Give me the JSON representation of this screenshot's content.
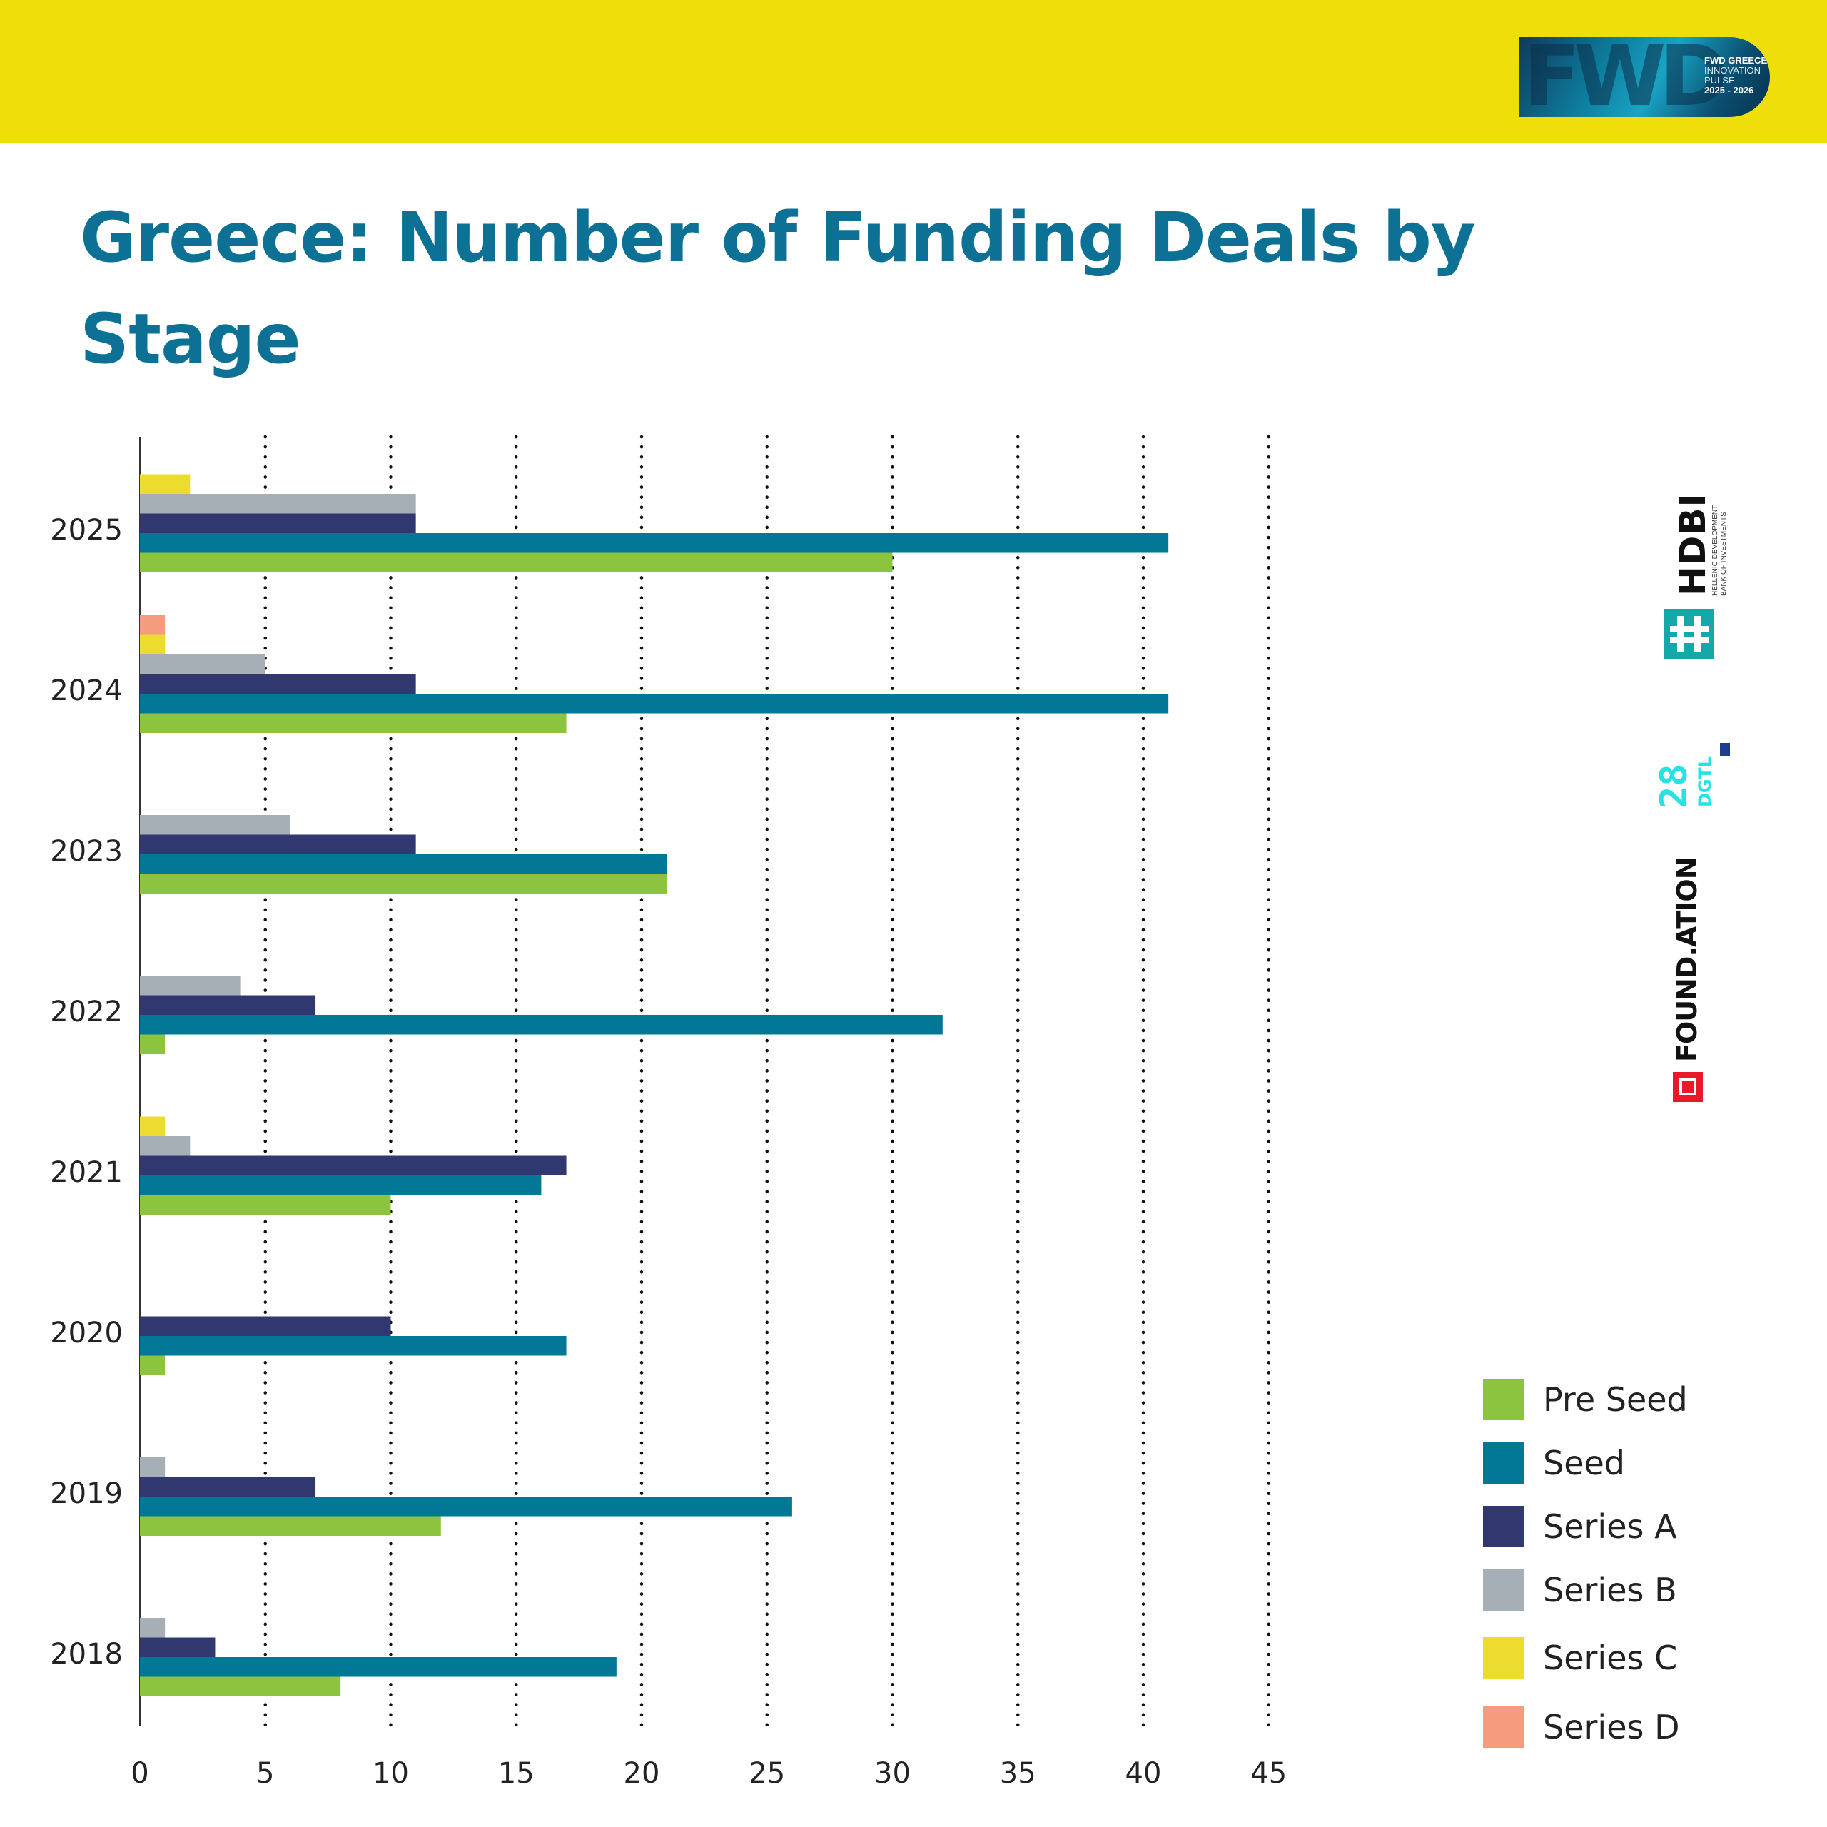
{
  "header": {
    "logo_text": "FWD",
    "logo_lines": [
      "FWD GREECE",
      "INNOVATION",
      "PULSE",
      "2025 - 2026"
    ]
  },
  "title": "Greece: Number of Funding Deals by Stage",
  "sponsors": {
    "hdbi": {
      "name": "HDBI",
      "line1": "HELLENIC DEVELOPMENT",
      "line2": "BANK OF INVESTMENTS",
      "color": "#14a8a8"
    },
    "dgtl": {
      "name": "28",
      "sub": "DGTL",
      "color": "#26e3e3"
    },
    "foundation": {
      "name": "FOUND.ATION",
      "color": "#e51b2a"
    }
  },
  "chart_data": {
    "type": "bar",
    "orientation": "horizontal",
    "title": "Greece: Number of Funding Deals by Stage",
    "xlabel": "",
    "ylabel": "",
    "xlim": [
      0,
      45
    ],
    "xticks": [
      0,
      5,
      10,
      15,
      20,
      25,
      30,
      35,
      40,
      45
    ],
    "grid": "vertical dotted",
    "categories": [
      "2025",
      "2024",
      "2023",
      "2022",
      "2021",
      "2020",
      "2019",
      "2018"
    ],
    "series": [
      {
        "name": "Pre Seed",
        "color": "#8cc43f",
        "values": [
          30,
          17,
          21,
          1,
          10,
          1,
          12,
          8
        ]
      },
      {
        "name": "Seed",
        "color": "#027796",
        "values": [
          41,
          41,
          21,
          32,
          16,
          17,
          26,
          19
        ]
      },
      {
        "name": "Series A",
        "color": "#31386f",
        "values": [
          11,
          11,
          11,
          7,
          17,
          10,
          7,
          3
        ]
      },
      {
        "name": "Series B",
        "color": "#a6aeb6",
        "values": [
          11,
          5,
          6,
          4,
          2,
          0,
          1,
          1
        ]
      },
      {
        "name": "Series C",
        "color": "#eddc30",
        "values": [
          2,
          1,
          0,
          0,
          1,
          0,
          0,
          0
        ]
      },
      {
        "name": "Series D",
        "color": "#f59b7e",
        "values": [
          0,
          1,
          0,
          0,
          0,
          0,
          0,
          0
        ]
      }
    ],
    "legend_position": "bottom-right"
  }
}
